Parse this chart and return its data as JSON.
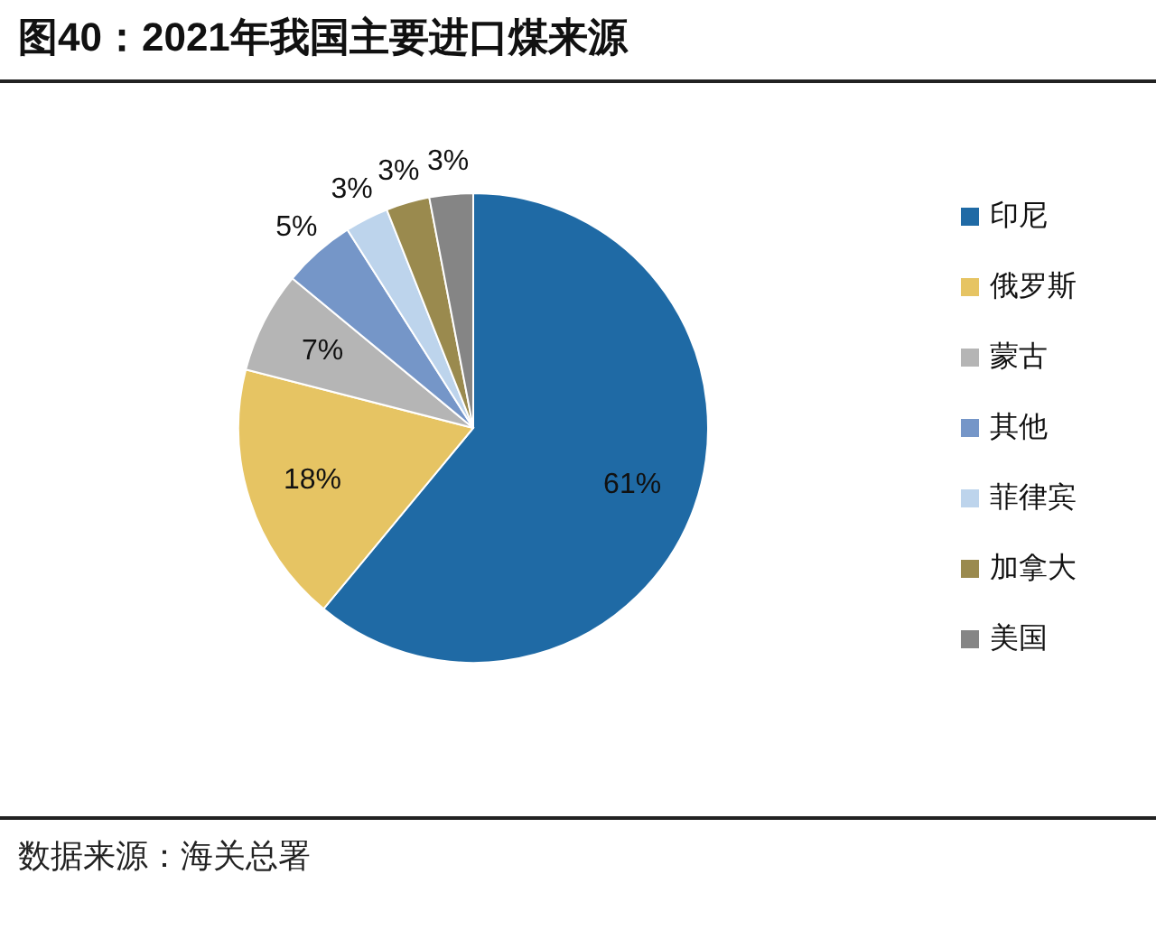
{
  "chart_data": {
    "type": "pie",
    "title": "图40：2021年我国主要进口煤来源",
    "categories": [
      "印尼",
      "俄罗斯",
      "蒙古",
      "其他",
      "菲律宾",
      "加拿大",
      "美国"
    ],
    "values": [
      61,
      18,
      7,
      5,
      3,
      3,
      3
    ],
    "colors": [
      "#1f6aa5",
      "#e6c463",
      "#b5b5b5",
      "#7596c8",
      "#bdd4ec",
      "#9a8a4e",
      "#858585"
    ],
    "value_labels": [
      "61%",
      "18%",
      "7%",
      "5%",
      "3%",
      "3%",
      "3%"
    ],
    "legend": "right",
    "annotations": [
      "数据来源：海关总署"
    ]
  }
}
